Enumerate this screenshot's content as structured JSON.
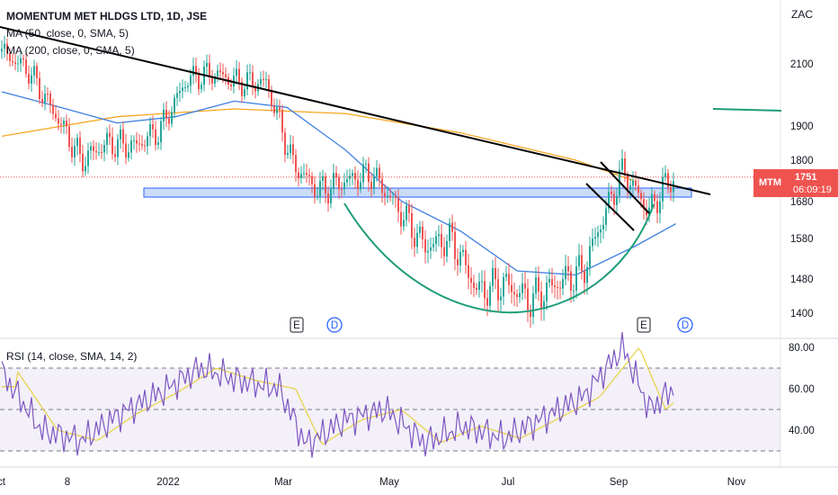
{
  "header": {
    "title": "MOMENTUM MET HLDGS LTD, 1D, JSE",
    "ma1": "MA (50, close, 0, SMA, 5)",
    "ma2": "MA (200, close, 0, SMA, 5)",
    "currency": "ZAC"
  },
  "price_tag": {
    "symbol": "MTM",
    "value": "1751",
    "countdown": "06:09:19"
  },
  "rsi": {
    "label": "RSI (14, close, SMA, 14, 2)"
  },
  "events": [
    "E",
    "D",
    "E",
    "D"
  ],
  "colors": {
    "up": "#26a69a",
    "down": "#ef5350",
    "ma50": "#3f7fe0",
    "ma200": "#f5a623",
    "rsi": "#7e57c2",
    "rsi_ma": "#e8d44d",
    "trendline": "#000000",
    "cup": "#1e9d7a",
    "zone": "#b3cdf5"
  },
  "chart_data": [
    {
      "type": "candlestick",
      "title": "MOMENTUM MET HLDGS LTD, 1D, JSE",
      "ylabel": "ZAC",
      "y_ticks": [
        2100,
        1900,
        1800,
        1680,
        1580,
        1480,
        1400
      ],
      "x_ticks": [
        "Oct",
        "8",
        "2022",
        "Mar",
        "May",
        "Jul",
        "Sep",
        "Nov"
      ],
      "last_price": 1751,
      "price_path": [
        {
          "date": "2021-10-01",
          "close": 2140
        },
        {
          "date": "2021-10-15",
          "close": 2080
        },
        {
          "date": "2021-10-29",
          "close": 1940
        },
        {
          "date": "2021-11-12",
          "close": 1800
        },
        {
          "date": "2021-11-26",
          "close": 1850
        },
        {
          "date": "2021-12-10",
          "close": 1840
        },
        {
          "date": "2021-12-24",
          "close": 1890
        },
        {
          "date": "2022-01-07",
          "close": 2050
        },
        {
          "date": "2022-01-21",
          "close": 2070
        },
        {
          "date": "2022-02-04",
          "close": 2040
        },
        {
          "date": "2022-02-18",
          "close": 2040
        },
        {
          "date": "2022-03-04",
          "close": 1790
        },
        {
          "date": "2022-03-18",
          "close": 1710
        },
        {
          "date": "2022-04-01",
          "close": 1740
        },
        {
          "date": "2022-04-15",
          "close": 1760
        },
        {
          "date": "2022-04-29",
          "close": 1660
        },
        {
          "date": "2022-05-13",
          "close": 1560
        },
        {
          "date": "2022-05-27",
          "close": 1580
        },
        {
          "date": "2022-06-10",
          "close": 1450
        },
        {
          "date": "2022-06-24",
          "close": 1470
        },
        {
          "date": "2022-07-08",
          "close": 1430
        },
        {
          "date": "2022-07-22",
          "close": 1470
        },
        {
          "date": "2022-08-05",
          "close": 1500
        },
        {
          "date": "2022-08-19",
          "close": 1680
        },
        {
          "date": "2022-08-26",
          "close": 1770
        },
        {
          "date": "2022-09-09",
          "close": 1650
        },
        {
          "date": "2022-09-16",
          "close": 1720
        },
        {
          "date": "2022-09-23",
          "close": 1751
        }
      ],
      "ma50_path": [
        {
          "date": "2021-10-01",
          "value": 2010
        },
        {
          "date": "2021-11-01",
          "value": 1960
        },
        {
          "date": "2021-12-01",
          "value": 1910
        },
        {
          "date": "2022-01-01",
          "value": 1930
        },
        {
          "date": "2022-02-01",
          "value": 1980
        },
        {
          "date": "2022-03-01",
          "value": 1960
        },
        {
          "date": "2022-04-01",
          "value": 1830
        },
        {
          "date": "2022-05-01",
          "value": 1680
        },
        {
          "date": "2022-06-01",
          "value": 1600
        },
        {
          "date": "2022-07-01",
          "value": 1500
        },
        {
          "date": "2022-08-01",
          "value": 1490
        },
        {
          "date": "2022-09-01",
          "value": 1560
        },
        {
          "date": "2022-09-23",
          "value": 1620
        }
      ],
      "ma200_path": [
        {
          "date": "2021-10-01",
          "value": 1870
        },
        {
          "date": "2021-12-01",
          "value": 1930
        },
        {
          "date": "2022-02-01",
          "value": 1955
        },
        {
          "date": "2022-04-01",
          "value": 1940
        },
        {
          "date": "2022-06-01",
          "value": 1880
        },
        {
          "date": "2022-08-01",
          "value": 1800
        },
        {
          "date": "2022-09-01",
          "value": 1740
        }
      ]
    },
    {
      "type": "line",
      "title": "RSI (14, close, SMA, 14, 2)",
      "y_ticks": [
        80,
        60,
        40
      ],
      "bands": [
        70,
        50,
        30
      ],
      "rsi_path": [
        {
          "date": "2021-10-01",
          "value": 68
        },
        {
          "date": "2021-10-22",
          "value": 40
        },
        {
          "date": "2021-11-12",
          "value": 35
        },
        {
          "date": "2021-12-03",
          "value": 48
        },
        {
          "date": "2021-12-24",
          "value": 58
        },
        {
          "date": "2022-01-14",
          "value": 70
        },
        {
          "date": "2022-02-04",
          "value": 64
        },
        {
          "date": "2022-02-25",
          "value": 60
        },
        {
          "date": "2022-03-11",
          "value": 33
        },
        {
          "date": "2022-04-01",
          "value": 45
        },
        {
          "date": "2022-04-22",
          "value": 50
        },
        {
          "date": "2022-05-13",
          "value": 34
        },
        {
          "date": "2022-06-03",
          "value": 42
        },
        {
          "date": "2022-06-24",
          "value": 36
        },
        {
          "date": "2022-07-15",
          "value": 46
        },
        {
          "date": "2022-08-05",
          "value": 56
        },
        {
          "date": "2022-08-26",
          "value": 80
        },
        {
          "date": "2022-09-09",
          "value": 50
        },
        {
          "date": "2022-09-23",
          "value": 61
        }
      ]
    }
  ]
}
